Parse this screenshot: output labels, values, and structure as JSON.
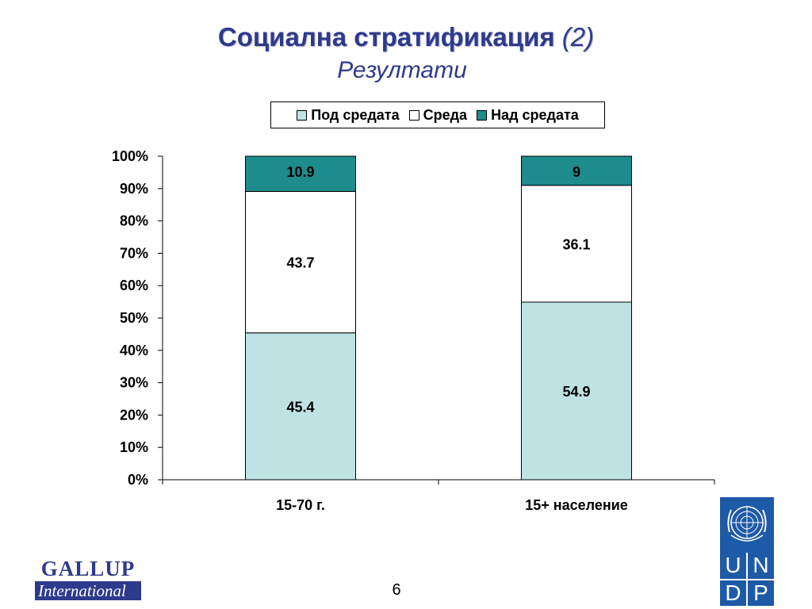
{
  "header": {
    "title_main": "Социална стратификация",
    "title_paren": "(2)",
    "subtitle": "Резултати"
  },
  "legend": [
    {
      "label": "Под средата",
      "color": "#BFE3E3"
    },
    {
      "label": "Среда",
      "color": "#FFFFFF"
    },
    {
      "label": "Над средата",
      "color": "#1E8C8C"
    }
  ],
  "chart_data": {
    "type": "bar",
    "stacked": true,
    "percent_axis": true,
    "categories": [
      "15-70 г.",
      "15+ население"
    ],
    "series": [
      {
        "name": "Под средата",
        "values": [
          45.4,
          54.9
        ],
        "color": "#BFE3E3"
      },
      {
        "name": "Среда",
        "values": [
          43.7,
          36.1
        ],
        "color": "#FFFFFF"
      },
      {
        "name": "Над средата",
        "values": [
          10.9,
          9
        ],
        "color": "#1E8C8C"
      }
    ],
    "data_labels": [
      [
        "45.4",
        "43.7",
        "10.9"
      ],
      [
        "54.9",
        "36.1",
        "9"
      ]
    ],
    "y_ticks": [
      "0%",
      "10%",
      "20%",
      "30%",
      "40%",
      "50%",
      "60%",
      "70%",
      "80%",
      "90%",
      "100%"
    ],
    "ylim": [
      0,
      100
    ],
    "grid": false,
    "legend_position": "top"
  },
  "footer": {
    "page_number": "6",
    "gallup_top": "GALLUP",
    "gallup_bottom": "International",
    "undp_letters": [
      "U",
      "N",
      "D",
      "P"
    ]
  }
}
